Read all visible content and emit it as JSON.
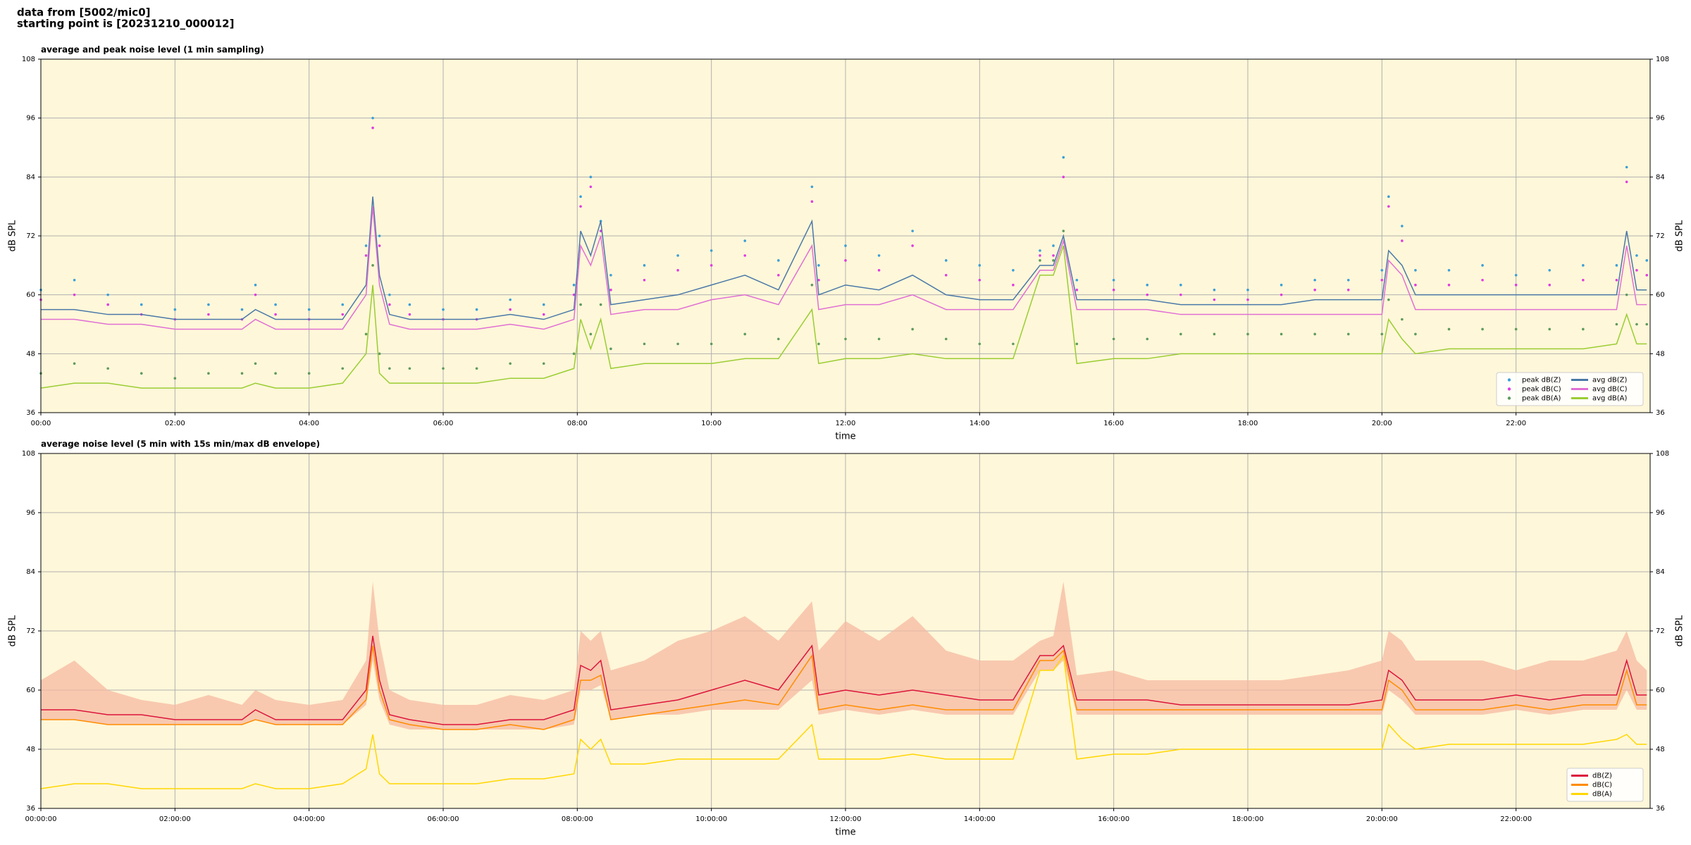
{
  "header": {
    "source": "data from [5002/mic0]",
    "start": "starting point is [20231210_000012]"
  },
  "chart_data": [
    {
      "type": "line",
      "title": "average and peak noise level (1 min sampling)",
      "xlabel": "time",
      "ylabel": "dB SPL",
      "xlim": [
        0,
        24
      ],
      "ylim": [
        36,
        108
      ],
      "yticks": [
        36,
        48,
        60,
        72,
        84,
        96,
        108
      ],
      "xticks": [
        {
          "value": 0,
          "label": "00:00"
        },
        {
          "value": 2,
          "label": "02:00"
        },
        {
          "value": 4,
          "label": "04:00"
        },
        {
          "value": 6,
          "label": "06:00"
        },
        {
          "value": 8,
          "label": "08:00"
        },
        {
          "value": 10,
          "label": "10:00"
        },
        {
          "value": 12,
          "label": "12:00"
        },
        {
          "value": 14,
          "label": "14:00"
        },
        {
          "value": 16,
          "label": "16:00"
        },
        {
          "value": 18,
          "label": "18:00"
        },
        {
          "value": 20,
          "label": "20:00"
        },
        {
          "value": 22,
          "label": "22:00"
        }
      ],
      "grid": true,
      "legend": "lower right",
      "legend_columns": 2,
      "background": "#fff7d9",
      "x": [
        0,
        0.5,
        1,
        1.5,
        2,
        2.5,
        3,
        3.2,
        3.5,
        4,
        4.5,
        4.85,
        4.95,
        5.05,
        5.2,
        5.5,
        6,
        6.5,
        7,
        7.5,
        7.95,
        8.05,
        8.2,
        8.35,
        8.5,
        9,
        9.5,
        10,
        10.5,
        11,
        11.5,
        11.6,
        12,
        12.5,
        13,
        13.5,
        14,
        14.5,
        14.9,
        15.1,
        15.25,
        15.45,
        16,
        16.5,
        17,
        17.5,
        18,
        18.5,
        19,
        19.5,
        20,
        20.1,
        20.3,
        20.5,
        21,
        21.5,
        22,
        22.5,
        23,
        23.5,
        23.65,
        23.8,
        23.95
      ],
      "series": [
        {
          "name": "peak dB(Z)",
          "color": "#3a9fd8",
          "style": "points",
          "values": [
            61,
            63,
            60,
            58,
            57,
            58,
            57,
            62,
            58,
            57,
            58,
            70,
            96,
            72,
            60,
            58,
            57,
            57,
            59,
            58,
            62,
            80,
            84,
            75,
            64,
            66,
            68,
            69,
            71,
            67,
            82,
            66,
            70,
            68,
            73,
            67,
            66,
            65,
            69,
            70,
            88,
            63,
            63,
            62,
            62,
            61,
            61,
            62,
            63,
            63,
            65,
            80,
            74,
            65,
            65,
            66,
            64,
            65,
            66,
            66,
            86,
            68,
            67
          ]
        },
        {
          "name": "peak dB(C)",
          "color": "#e03ce0",
          "style": "points",
          "values": [
            59,
            60,
            58,
            56,
            55,
            56,
            55,
            60,
            56,
            55,
            56,
            68,
            94,
            70,
            58,
            56,
            55,
            55,
            57,
            56,
            60,
            78,
            82,
            73,
            61,
            63,
            65,
            66,
            68,
            64,
            79,
            63,
            67,
            65,
            70,
            64,
            63,
            62,
            68,
            68,
            84,
            61,
            61,
            60,
            60,
            59,
            59,
            60,
            61,
            61,
            63,
            78,
            71,
            62,
            62,
            63,
            62,
            62,
            63,
            63,
            83,
            65,
            64
          ]
        },
        {
          "name": "peak dB(A)",
          "color": "#5e9a5e",
          "style": "points",
          "values": [
            44,
            46,
            45,
            44,
            43,
            44,
            44,
            46,
            44,
            44,
            45,
            52,
            66,
            48,
            45,
            45,
            45,
            45,
            46,
            46,
            48,
            58,
            52,
            58,
            49,
            50,
            50,
            50,
            52,
            51,
            62,
            50,
            51,
            51,
            53,
            51,
            50,
            50,
            67,
            67,
            73,
            50,
            51,
            51,
            52,
            52,
            52,
            52,
            52,
            52,
            52,
            59,
            55,
            52,
            53,
            53,
            53,
            53,
            53,
            54,
            60,
            54,
            54
          ]
        },
        {
          "name": "avg dB(Z)",
          "color": "#4a78a8",
          "style": "line",
          "values": [
            57,
            57,
            56,
            56,
            55,
            55,
            55,
            57,
            55,
            55,
            55,
            62,
            80,
            64,
            56,
            55,
            55,
            55,
            56,
            55,
            57,
            73,
            68,
            75,
            58,
            59,
            60,
            62,
            64,
            61,
            75,
            60,
            62,
            61,
            64,
            60,
            59,
            59,
            66,
            66,
            72,
            59,
            59,
            59,
            58,
            58,
            58,
            58,
            59,
            59,
            59,
            69,
            66,
            60,
            60,
            60,
            60,
            60,
            60,
            60,
            73,
            61,
            61
          ]
        },
        {
          "name": "avg dB(C)",
          "color": "#e070d4",
          "style": "line",
          "values": [
            55,
            55,
            54,
            54,
            53,
            53,
            53,
            55,
            53,
            53,
            53,
            60,
            78,
            62,
            54,
            53,
            53,
            53,
            54,
            53,
            55,
            70,
            66,
            72,
            56,
            57,
            57,
            59,
            60,
            58,
            70,
            57,
            58,
            58,
            60,
            57,
            57,
            57,
            65,
            65,
            71,
            57,
            57,
            57,
            56,
            56,
            56,
            56,
            56,
            56,
            56,
            67,
            64,
            57,
            57,
            57,
            57,
            57,
            57,
            57,
            70,
            58,
            58
          ]
        },
        {
          "name": "avg dB(A)",
          "color": "#9acd32",
          "style": "line",
          "values": [
            41,
            42,
            42,
            41,
            41,
            41,
            41,
            42,
            41,
            41,
            42,
            48,
            62,
            44,
            42,
            42,
            42,
            42,
            43,
            43,
            45,
            55,
            49,
            55,
            45,
            46,
            46,
            46,
            47,
            47,
            57,
            46,
            47,
            47,
            48,
            47,
            47,
            47,
            64,
            64,
            70,
            46,
            47,
            47,
            48,
            48,
            48,
            48,
            48,
            48,
            48,
            55,
            51,
            48,
            49,
            49,
            49,
            49,
            49,
            50,
            56,
            50,
            50
          ]
        }
      ]
    },
    {
      "type": "line",
      "title": "average noise level (5 min with 15s min/max dB envelope)",
      "xlabel": "time",
      "ylabel": "dB SPL",
      "xlim": [
        0,
        24
      ],
      "ylim": [
        36,
        108
      ],
      "yticks": [
        36,
        48,
        60,
        72,
        84,
        96,
        108
      ],
      "xticks": [
        {
          "value": 0,
          "label": "00:00:00"
        },
        {
          "value": 2,
          "label": "02:00:00"
        },
        {
          "value": 4,
          "label": "04:00:00"
        },
        {
          "value": 6,
          "label": "06:00:00"
        },
        {
          "value": 8,
          "label": "08:00:00"
        },
        {
          "value": 10,
          "label": "10:00:00"
        },
        {
          "value": 12,
          "label": "12:00:00"
        },
        {
          "value": 14,
          "label": "14:00:00"
        },
        {
          "value": 16,
          "label": "16:00:00"
        },
        {
          "value": 18,
          "label": "18:00:00"
        },
        {
          "value": 20,
          "label": "20:00:00"
        },
        {
          "value": 22,
          "label": "22:00:00"
        }
      ],
      "grid": true,
      "legend": "lower right",
      "legend_columns": 1,
      "background": "#fff7d9",
      "x": [
        0,
        0.5,
        1,
        1.5,
        2,
        2.5,
        3,
        3.2,
        3.5,
        4,
        4.5,
        4.85,
        4.95,
        5.05,
        5.2,
        5.5,
        6,
        6.5,
        7,
        7.5,
        7.95,
        8.05,
        8.2,
        8.35,
        8.5,
        9,
        9.5,
        10,
        10.5,
        11,
        11.5,
        11.6,
        12,
        12.5,
        13,
        13.5,
        14,
        14.5,
        14.9,
        15.1,
        15.25,
        15.45,
        16,
        16.5,
        17,
        17.5,
        18,
        18.5,
        19,
        19.5,
        20,
        20.1,
        20.3,
        20.5,
        21,
        21.5,
        22,
        22.5,
        23,
        23.5,
        23.65,
        23.8,
        23.95
      ],
      "envelope": {
        "color": "#f5b9a0",
        "low": [
          54,
          54,
          53,
          53,
          53,
          53,
          53,
          54,
          53,
          53,
          53,
          57,
          66,
          58,
          53,
          52,
          52,
          52,
          52,
          52,
          53,
          60,
          60,
          61,
          54,
          55,
          55,
          56,
          56,
          56,
          62,
          55,
          56,
          55,
          56,
          55,
          55,
          55,
          64,
          64,
          66,
          55,
          55,
          55,
          55,
          55,
          55,
          55,
          55,
          55,
          55,
          60,
          58,
          55,
          55,
          55,
          56,
          55,
          56,
          56,
          60,
          56,
          56
        ],
        "high": [
          62,
          66,
          60,
          58,
          57,
          59,
          57,
          60,
          58,
          57,
          58,
          66,
          82,
          70,
          60,
          58,
          57,
          57,
          59,
          58,
          60,
          72,
          70,
          72,
          64,
          66,
          70,
          72,
          75,
          70,
          78,
          68,
          74,
          70,
          75,
          68,
          66,
          66,
          70,
          71,
          82,
          63,
          64,
          62,
          62,
          62,
          62,
          62,
          63,
          64,
          66,
          72,
          70,
          66,
          66,
          66,
          64,
          66,
          66,
          68,
          72,
          66,
          64
        ]
      },
      "series": [
        {
          "name": "dB(Z)",
          "color": "#dc143c",
          "style": "line",
          "values": [
            56,
            56,
            55,
            55,
            54,
            54,
            54,
            56,
            54,
            54,
            54,
            60,
            71,
            62,
            55,
            54,
            53,
            53,
            54,
            54,
            56,
            65,
            64,
            66,
            56,
            57,
            58,
            60,
            62,
            60,
            69,
            59,
            60,
            59,
            60,
            59,
            58,
            58,
            67,
            67,
            69,
            58,
            58,
            58,
            57,
            57,
            57,
            57,
            57,
            57,
            58,
            64,
            62,
            58,
            58,
            58,
            59,
            58,
            59,
            59,
            66,
            59,
            59
          ]
        },
        {
          "name": "dB(C)",
          "color": "#ff8c00",
          "style": "line",
          "values": [
            54,
            54,
            53,
            53,
            53,
            53,
            53,
            54,
            53,
            53,
            53,
            58,
            69,
            60,
            54,
            53,
            52,
            52,
            53,
            52,
            54,
            62,
            62,
            63,
            54,
            55,
            56,
            57,
            58,
            57,
            67,
            56,
            57,
            56,
            57,
            56,
            56,
            56,
            66,
            66,
            68,
            56,
            56,
            56,
            56,
            56,
            56,
            56,
            56,
            56,
            56,
            62,
            60,
            56,
            56,
            56,
            57,
            56,
            57,
            57,
            64,
            57,
            57
          ]
        },
        {
          "name": "dB(A)",
          "color": "#ffd700",
          "style": "line",
          "values": [
            40,
            41,
            41,
            40,
            40,
            40,
            40,
            41,
            40,
            40,
            41,
            44,
            51,
            43,
            41,
            41,
            41,
            41,
            42,
            42,
            43,
            50,
            48,
            50,
            45,
            45,
            46,
            46,
            46,
            46,
            53,
            46,
            46,
            46,
            47,
            46,
            46,
            46,
            64,
            64,
            67,
            46,
            47,
            47,
            48,
            48,
            48,
            48,
            48,
            48,
            48,
            53,
            50,
            48,
            49,
            49,
            49,
            49,
            49,
            50,
            51,
            49,
            49
          ]
        }
      ]
    }
  ]
}
